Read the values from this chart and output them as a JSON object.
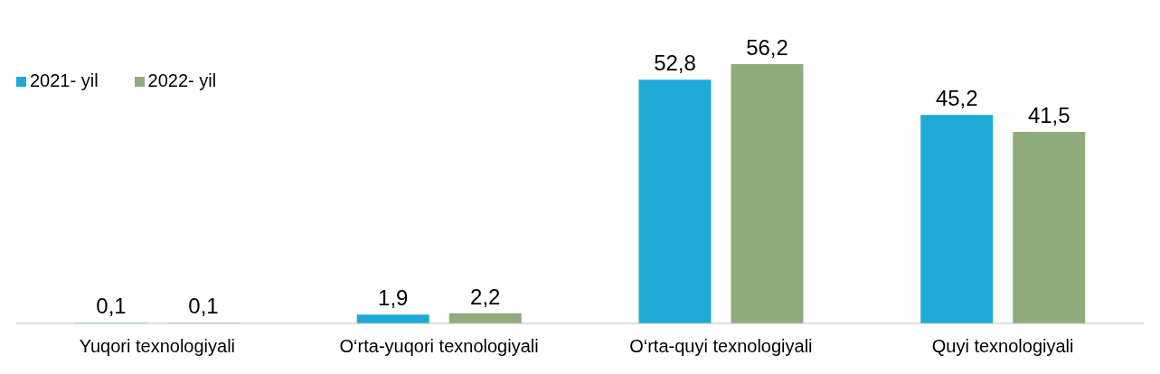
{
  "chart_data": {
    "type": "bar",
    "categories": [
      "Yuqori texnologiyali",
      "O‘rta-yuqori texnologiyali",
      "O‘rta-quyi texnologiyali",
      "Quyi texnologiyali"
    ],
    "series": [
      {
        "name": "2021- yil",
        "color": "#1fa9d6",
        "values": [
          0.1,
          1.9,
          52.8,
          45.2
        ],
        "value_labels": [
          "0,1",
          "1,9",
          "52,8",
          "45,2"
        ]
      },
      {
        "name": "2022- yil",
        "color": "#8fac7c",
        "values": [
          0.1,
          2.2,
          56.2,
          41.5
        ],
        "value_labels": [
          "0,1",
          "2,2",
          "56,2",
          "41,5"
        ]
      }
    ],
    "legend": "top left",
    "grid": false
  }
}
